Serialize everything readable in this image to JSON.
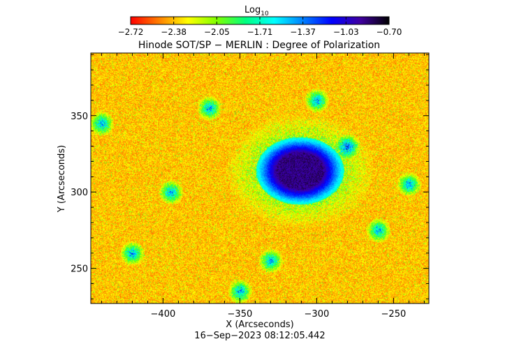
{
  "colorbar": {
    "label_main": "Log",
    "label_sub": "10",
    "tick_labels": [
      "−2.72",
      "−2.38",
      "−2.05",
      "−1.71",
      "−1.37",
      "−1.03",
      "−0.70"
    ],
    "colors": [
      "#ff0000",
      "#ff8000",
      "#ffff00",
      "#80ff00",
      "#00ff80",
      "#00ffff",
      "#0080ff",
      "#0000ff",
      "#4000a0",
      "#000000"
    ]
  },
  "chart_data": {
    "type": "heatmap",
    "title": "Hinode SOT/SP − MERLIN : Degree of Polarization",
    "xlabel": "X (Arcseconds)",
    "ylabel": "Y (Arcseconds)",
    "xlim": [
      -447,
      -227
    ],
    "ylim": [
      227,
      391
    ],
    "x_ticks": [
      -400,
      -350,
      -300,
      -250
    ],
    "x_tick_labels": [
      "−400",
      "−350",
      "−300",
      "−250"
    ],
    "y_ticks": [
      250,
      300,
      350
    ],
    "y_tick_labels": [
      "250",
      "300",
      "350"
    ],
    "value_range_log10": [
      -2.72,
      -0.7
    ],
    "features": {
      "sunspot_center": [
        -311,
        314
      ],
      "sunspot_umbra_radius": 12,
      "sunspot_penumbra_radius": 22,
      "plage_centers": [
        [
          -440,
          345
        ],
        [
          -350,
          235
        ],
        [
          -300,
          360
        ],
        [
          -420,
          260
        ],
        [
          -260,
          275
        ],
        [
          -370,
          355
        ],
        [
          -330,
          255
        ],
        [
          -240,
          305
        ],
        [
          -395,
          300
        ],
        [
          -280,
          330
        ]
      ]
    }
  },
  "footer": {
    "timestamp": "16−Sep−2023 08:12:05.442"
  }
}
